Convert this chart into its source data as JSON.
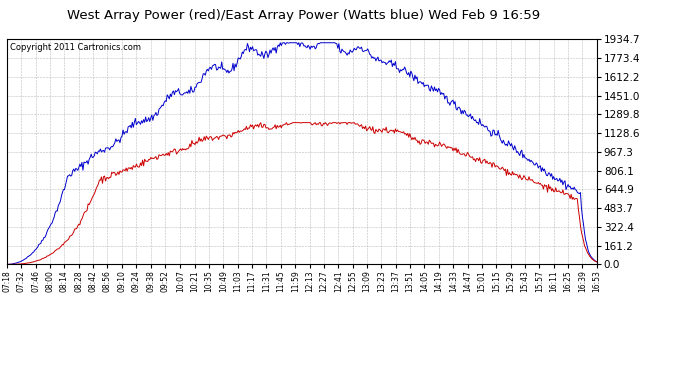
{
  "title": "West Array Power (red)/East Array Power (Watts blue) Wed Feb 9 16:59",
  "copyright": "Copyright 2011 Cartronics.com",
  "background_color": "#ffffff",
  "grid_color": "#aaaaaa",
  "yticks": [
    0.0,
    161.2,
    322.4,
    483.7,
    644.9,
    806.1,
    967.3,
    1128.6,
    1289.8,
    1451.0,
    1612.2,
    1773.4,
    1934.7
  ],
  "ymax": 1934.7,
  "ymin": 0.0,
  "time_labels": [
    "07:18",
    "07:32",
    "07:46",
    "08:00",
    "08:14",
    "08:28",
    "08:42",
    "08:56",
    "09:10",
    "09:24",
    "09:38",
    "09:52",
    "10:07",
    "10:21",
    "10:35",
    "10:49",
    "11:03",
    "11:17",
    "11:31",
    "11:45",
    "11:59",
    "12:13",
    "12:27",
    "12:41",
    "12:55",
    "13:09",
    "13:23",
    "13:37",
    "13:51",
    "14:05",
    "14:19",
    "14:33",
    "14:47",
    "15:01",
    "15:15",
    "15:29",
    "15:43",
    "15:57",
    "16:11",
    "16:25",
    "16:39",
    "16:53"
  ],
  "west_color": "#cc0000",
  "east_color": "#0000cc",
  "title_fontsize": 9.5,
  "copyright_fontsize": 6.0,
  "ytick_fontsize": 7.5,
  "xtick_fontsize": 5.5
}
